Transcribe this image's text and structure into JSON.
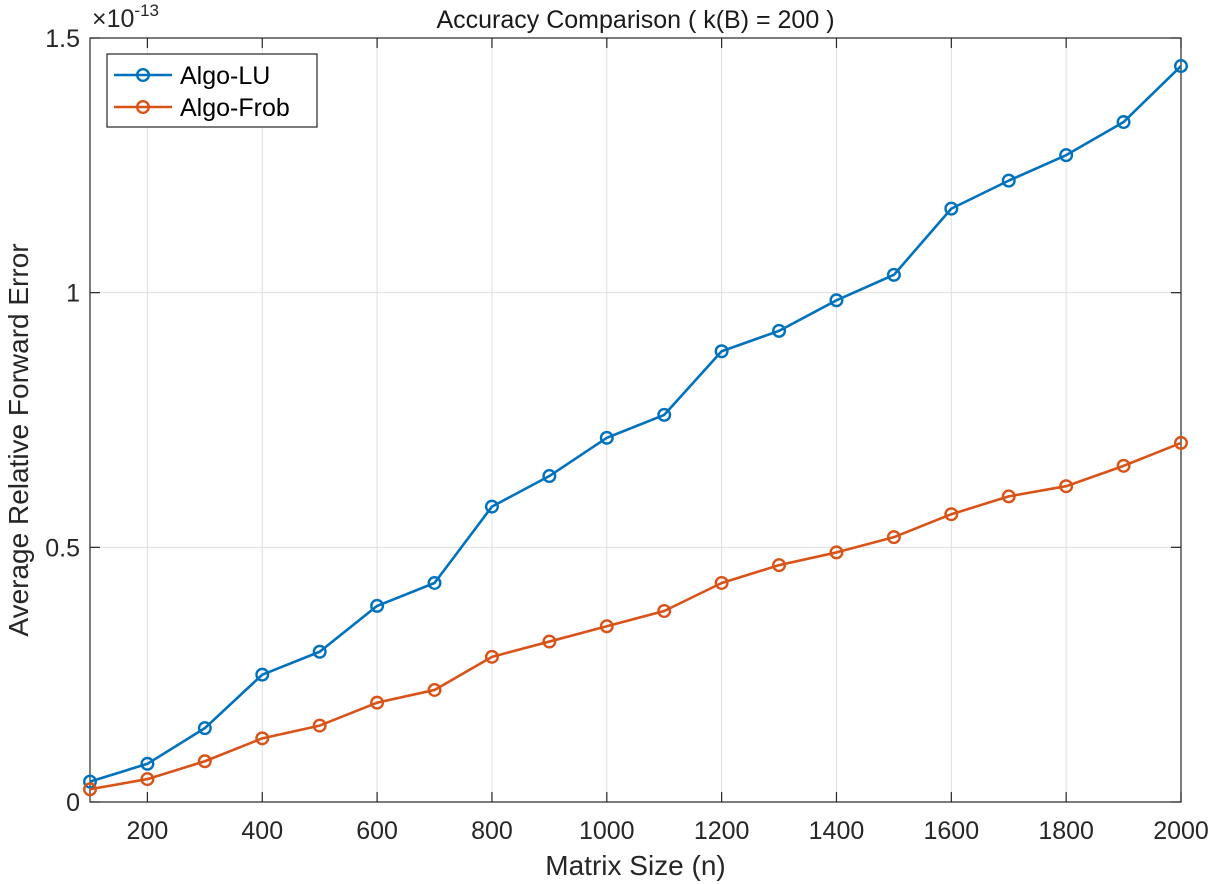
{
  "chart_data": {
    "type": "line",
    "title": "Accuracy Comparison ( k(B) = 200 )",
    "xlabel": "Matrix Size (n)",
    "ylabel": "Average Relative Forward Error",
    "y_exponent_label": "×10",
    "y_exponent_power": "-13",
    "xlim": [
      100,
      2000
    ],
    "ylim": [
      0,
      1.5
    ],
    "grid": true,
    "legend_position": "top-left",
    "x": [
      100,
      200,
      300,
      400,
      500,
      600,
      700,
      800,
      900,
      1000,
      1100,
      1200,
      1300,
      1400,
      1500,
      1600,
      1700,
      1800,
      1900,
      2000
    ],
    "x_ticks": [
      "200",
      "400",
      "600",
      "800",
      "1000",
      "1200",
      "1400",
      "1600",
      "1800",
      "2000"
    ],
    "x_tick_values": [
      200,
      400,
      600,
      800,
      1000,
      1200,
      1400,
      1600,
      1800,
      2000
    ],
    "y_ticks": [
      "0",
      "0.5",
      "1",
      "1.5"
    ],
    "y_tick_values": [
      0,
      0.5,
      1,
      1.5
    ],
    "series": [
      {
        "name": "Algo-LU",
        "color": "#0072BD",
        "values": [
          0.04,
          0.075,
          0.145,
          0.25,
          0.295,
          0.385,
          0.43,
          0.58,
          0.64,
          0.715,
          0.76,
          0.885,
          0.925,
          0.985,
          1.035,
          1.165,
          1.22,
          1.27,
          1.335,
          1.445
        ]
      },
      {
        "name": "Algo-Frob",
        "color": "#D95319",
        "values": [
          0.025,
          0.045,
          0.08,
          0.125,
          0.15,
          0.195,
          0.22,
          0.285,
          0.315,
          0.345,
          0.375,
          0.43,
          0.465,
          0.49,
          0.52,
          0.565,
          0.6,
          0.62,
          0.66,
          0.705
        ]
      }
    ]
  }
}
